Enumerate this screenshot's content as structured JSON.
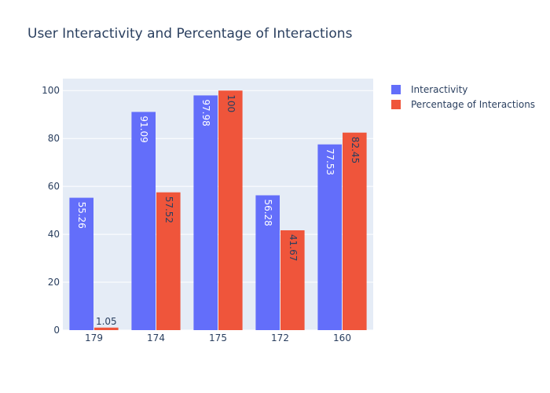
{
  "chart_data": {
    "type": "bar",
    "title": "User Interactivity and Percentage of Interactions",
    "xlabel": "",
    "ylabel": "",
    "categories": [
      "179",
      "174",
      "175",
      "172",
      "160"
    ],
    "series": [
      {
        "name": "Interactivity",
        "values": [
          55.26,
          91.09,
          97.98,
          56.28,
          77.53
        ],
        "color": "#636efa",
        "label_color": "#ffffff"
      },
      {
        "name": "Percentage of Interactions",
        "values": [
          1.05,
          57.52,
          100,
          41.67,
          82.45
        ],
        "color": "#ef553b",
        "label_color": "#2a3f5f"
      }
    ],
    "ylim": [
      0,
      105
    ],
    "yticks": [
      0,
      20,
      40,
      60,
      80,
      100
    ],
    "grid": true,
    "legend_position": "top-right",
    "plot_background": "#e5ecf6"
  }
}
